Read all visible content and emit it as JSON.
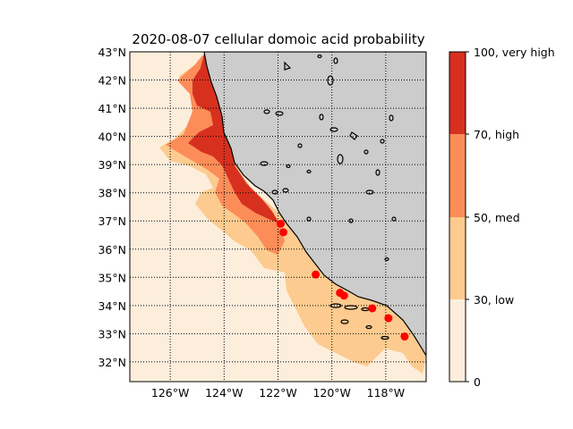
{
  "map": {
    "title": "2020-08-07 cellular domoic acid probability",
    "lon_range": [
      -127.5,
      -116.5
    ],
    "lat_range": [
      31.3,
      43.0
    ],
    "lat_ticks": [
      "43°N",
      "42°N",
      "41°N",
      "40°N",
      "39°N",
      "38°N",
      "37°N",
      "36°N",
      "35°N",
      "34°N",
      "33°N",
      "32°N"
    ],
    "lon_ticks": [
      "126°W",
      "124°W",
      "122°W",
      "120°W",
      "118°W"
    ],
    "gridlines": "dotted",
    "land_color": "#cccccc",
    "coast_color": "#000000",
    "probability_bands": [
      {
        "range": "0-30",
        "color": "#fdeedc"
      },
      {
        "range": "30-50",
        "color": "#fdcb8f"
      },
      {
        "range": "50-70",
        "color": "#fc8d59"
      },
      {
        "range": "70-100",
        "color": "#d7301f"
      }
    ],
    "station_color": "#ff0000",
    "stations": [
      {
        "lon": -121.9,
        "lat": 36.9
      },
      {
        "lon": -121.8,
        "lat": 36.6
      },
      {
        "lon": -120.6,
        "lat": 35.1
      },
      {
        "lon": -119.7,
        "lat": 34.45
      },
      {
        "lon": -119.55,
        "lat": 34.35
      },
      {
        "lon": -118.5,
        "lat": 33.9
      },
      {
        "lon": -117.9,
        "lat": 33.55
      },
      {
        "lon": -117.3,
        "lat": 32.9
      }
    ]
  },
  "colorbar": {
    "labels": [
      "100, very high",
      "70, high",
      "50, med",
      "30, low",
      "0"
    ]
  }
}
